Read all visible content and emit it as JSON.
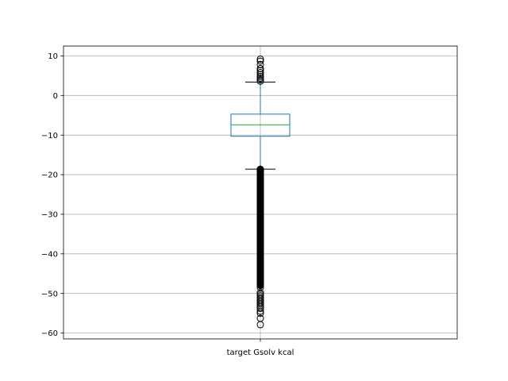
{
  "chart_data": {
    "type": "box",
    "categories": [
      "target Gsolv kcal"
    ],
    "ylim": [
      -61.5,
      12.5
    ],
    "yticks": [
      -60,
      -50,
      -40,
      -30,
      -20,
      -10,
      0,
      10
    ],
    "ytick_labels": [
      "−60",
      "−50",
      "−40",
      "−30",
      "−20",
      "−10",
      "0",
      "10"
    ],
    "grid": true,
    "box": {
      "q1": -10.3,
      "median": -7.4,
      "q3": -4.7,
      "whisker_low": -18.6,
      "whisker_high": 3.4
    },
    "outlier_ranges_dense": [
      [
        -48.0,
        -18.6
      ]
    ],
    "outliers": [
      3.6,
      4.0,
      4.4,
      4.8,
      5.3,
      5.8,
      6.3,
      6.8,
      7.8,
      8.7,
      9.2,
      -48.5,
      -49.8,
      -50.2,
      -50.6,
      -51.0,
      -51.4,
      -51.8,
      -52.2,
      -52.6,
      -53.0,
      -53.4,
      -53.8,
      -54.5,
      -55.0,
      -56.3,
      -57.9
    ],
    "colors": {
      "box": "#1f77b4",
      "median": "#2ca02c",
      "whisker": "#1f77b4",
      "cap": "#000000",
      "outlier": "#000000",
      "grid": "#b0b0b0"
    }
  }
}
